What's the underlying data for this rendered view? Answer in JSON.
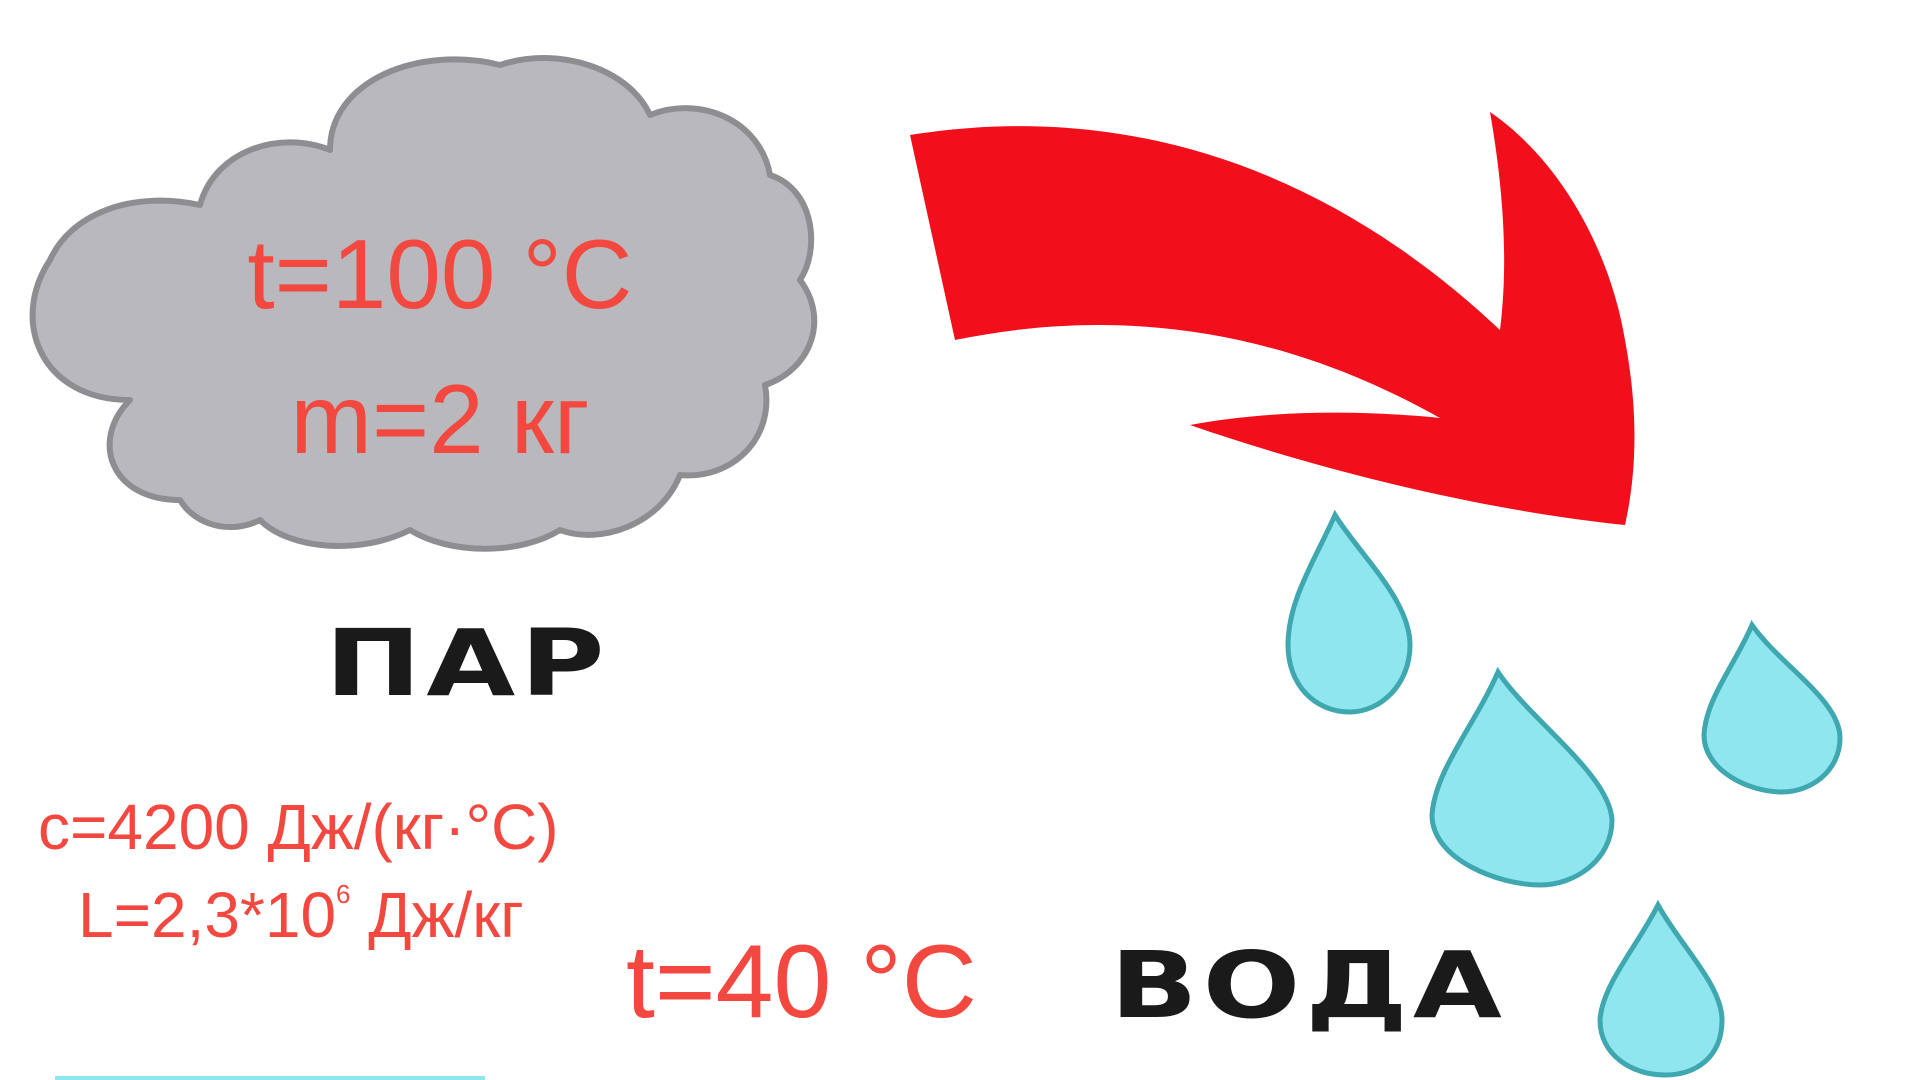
{
  "cloud": {
    "temperature": "t=100 °C",
    "mass": "m=2 кг"
  },
  "labels": {
    "steam": "ПАР",
    "water": "ВОДА"
  },
  "constants": {
    "specific_heat": "c=4200 Дж/(кг·°С)",
    "latent_heat_prefix": "L=2,3*10",
    "latent_heat_exponent": "6",
    "latent_heat_suffix": " Дж/кг"
  },
  "final_temperature": "t=40 °C",
  "colors": {
    "cloud_fill": "#b9b8bc",
    "cloud_outline": "#8e8d92",
    "arrow": "#f20f1c",
    "drop_fill": "#8fe6ee",
    "drop_outline": "#3fa7b0",
    "annotation_text": "#f2483f",
    "label_text": "#1a1a1a"
  },
  "icons": {
    "cloud": "cloud-icon",
    "arrow": "curved-arrow-icon",
    "drops": "water-drop-icon"
  }
}
